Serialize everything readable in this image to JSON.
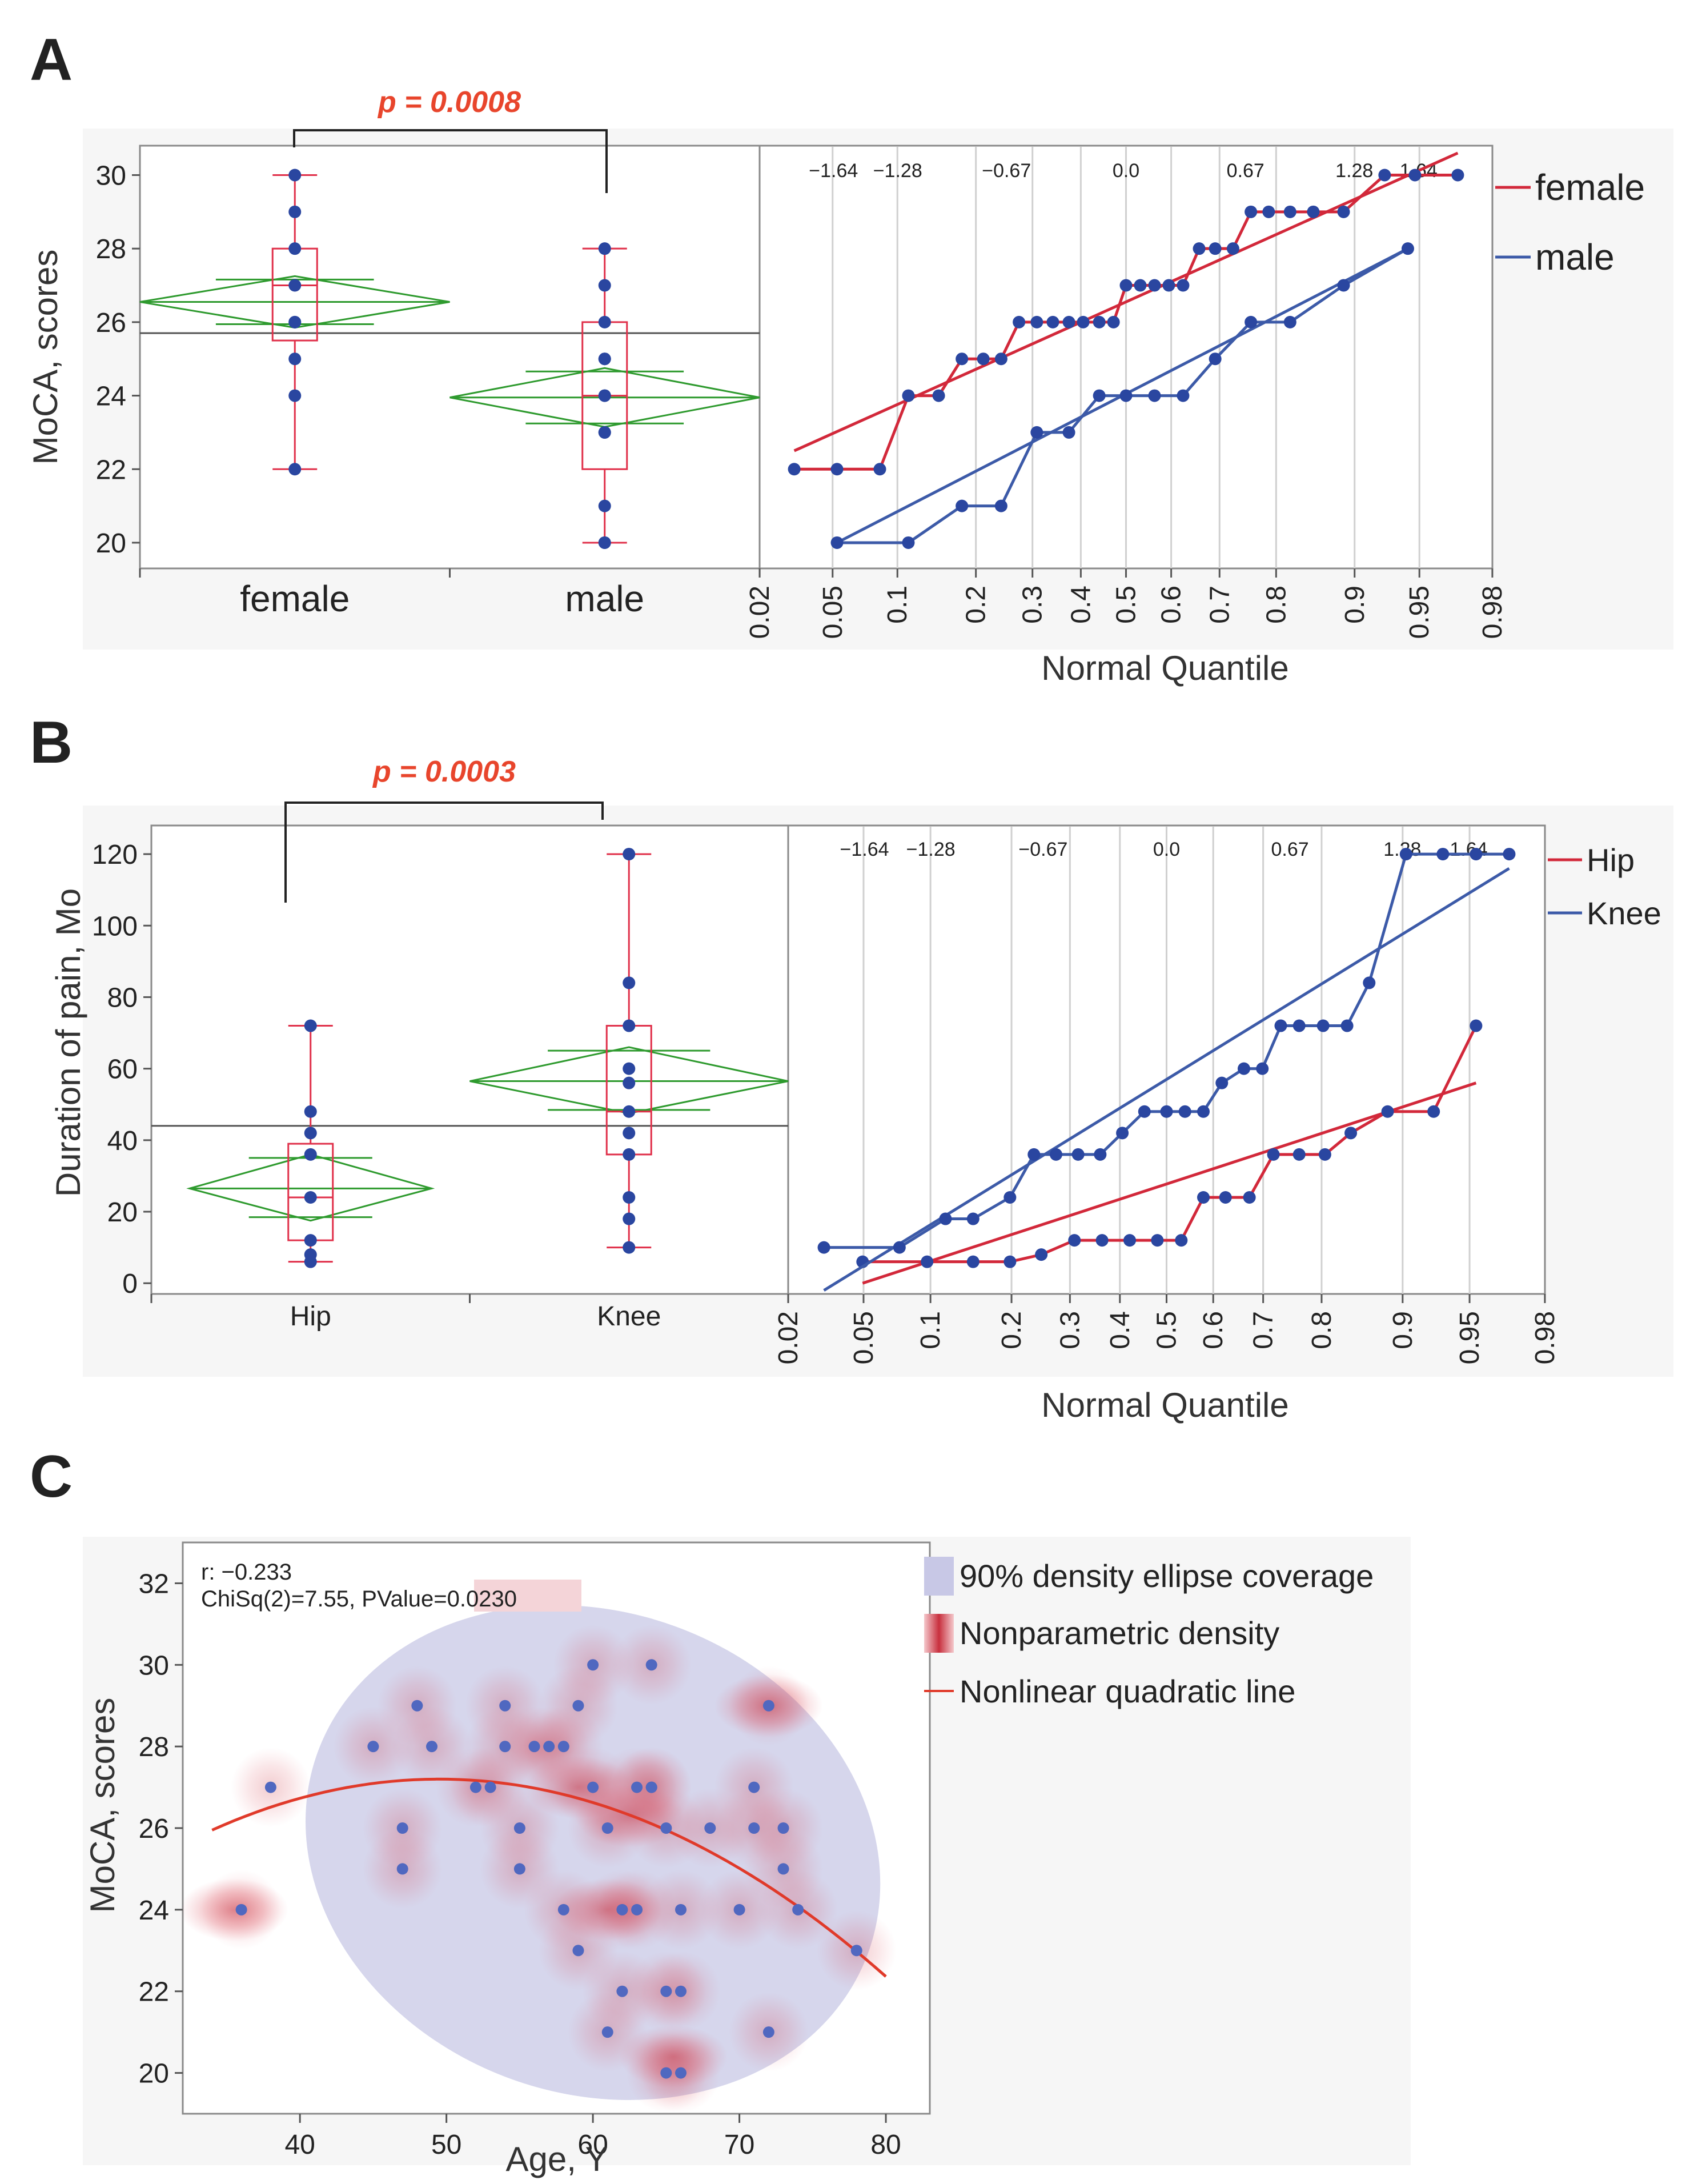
{
  "colors": {
    "female": "#d2283a",
    "male": "#3c5aa8",
    "box": "#e0304a",
    "diamond": "#2e9a2e",
    "point": "#2a46a0",
    "pvalue": "#e8452c",
    "ellipse": "#c8c8e6",
    "density": "#d8404e",
    "quad": "#e03a2a"
  },
  "panels": {
    "A": {
      "letter": "A",
      "pvalue": "p = 0.0008",
      "ylabel": "MoCA, scores",
      "xlabel": "Normal Quantile",
      "legend": [
        "female",
        "male"
      ],
      "group_labels": [
        "female",
        "male"
      ],
      "yticks": [
        "20",
        "22",
        "24",
        "26",
        "28",
        "30"
      ],
      "qticks": [
        "0.02",
        "0.05",
        "0.1",
        "0.2",
        "0.3",
        "0.4",
        "0.5",
        "0.6",
        "0.7",
        "0.8",
        "0.9",
        "0.95",
        "0.98"
      ],
      "zticks": [
        "-1.64",
        "-1.28",
        "-0.67",
        "0.0",
        "0.67",
        "1.28",
        "1.64"
      ]
    },
    "B": {
      "letter": "B",
      "pvalue": "p = 0.0003",
      "ylabel": "Duration of pain, Mo",
      "xlabel": "Normal Quantile",
      "legend": [
        "Hip",
        "Knee"
      ],
      "group_labels": [
        "Hip",
        "Knee"
      ],
      "yticks": [
        "0",
        "20",
        "40",
        "60",
        "80",
        "100",
        "120"
      ],
      "qticks": [
        "0.02",
        "0.05",
        "0.1",
        "0.2",
        "0.3",
        "0.4",
        "0.5",
        "0.6",
        "0.7",
        "0.8",
        "0.9",
        "0.95",
        "0.98"
      ],
      "zticks": [
        "-1.64",
        "-1.28",
        "-0.67",
        "0.0",
        "0.67",
        "1.28",
        "1.64"
      ]
    },
    "C": {
      "letter": "C",
      "ylabel": "MoCA, scores",
      "xlabel": "Age, Y",
      "r_text": "r: −0.233",
      "chisq_text": "ChiSq(2)=7.55, PValue=",
      "pvalue_text": "0.0230",
      "legend": [
        "90% density ellipse coverage",
        "Nonparametric density",
        "Nonlinear quadratic line"
      ],
      "xticks": [
        "40",
        "50",
        "60",
        "70",
        "80"
      ],
      "yticks": [
        "20",
        "22",
        "24",
        "26",
        "28",
        "30",
        "32"
      ]
    }
  },
  "chart_data": [
    {
      "panel": "A-box",
      "type": "box",
      "ylabel": "MoCA, scores",
      "ylim": [
        19.3,
        30.8
      ],
      "grand_mean": 25.7,
      "groups": [
        {
          "name": "female",
          "points": [
            22,
            24,
            25,
            26,
            26,
            27,
            28,
            29,
            30
          ],
          "q1": 25.5,
          "median": 27,
          "q3": 28,
          "whisker_low": 22,
          "whisker_high": 30,
          "mean": 26.55,
          "ci": [
            25.85,
            27.25
          ],
          "width_frac": 1.0
        },
        {
          "name": "male",
          "points": [
            20,
            20,
            21,
            23,
            23,
            24,
            24,
            25,
            25,
            26,
            27,
            28
          ],
          "q1": 22,
          "median": 24,
          "q3": 26,
          "whisker_low": 20,
          "whisker_high": 28,
          "mean": 23.95,
          "ci": [
            23.15,
            24.75
          ],
          "width_frac": 1.0
        }
      ],
      "annotation": "p = 0.0008"
    },
    {
      "panel": "A-quantile",
      "type": "line",
      "xlabel": "Normal Quantile",
      "ylim": [
        19.3,
        30.8
      ],
      "xlim_z": [
        -2.054,
        2.054
      ],
      "series": [
        {
          "name": "female",
          "x_z": [
            -1.86,
            -1.62,
            -1.38,
            -1.22,
            -1.05,
            -0.92,
            -0.8,
            -0.7,
            -0.6,
            -0.5,
            -0.41,
            -0.32,
            -0.24,
            -0.15,
            -0.07,
            0.0,
            0.08,
            0.16,
            0.24,
            0.32,
            0.41,
            0.5,
            0.6,
            0.7,
            0.8,
            0.92,
            1.05,
            1.22,
            1.45,
            1.62,
            1.86
          ],
          "y": [
            22,
            22,
            22,
            24,
            24,
            25,
            25,
            25,
            26,
            26,
            26,
            26,
            26,
            26,
            26,
            27,
            27,
            27,
            27,
            27,
            28,
            28,
            28,
            29,
            29,
            29,
            29,
            29,
            30,
            30,
            30
          ],
          "fit": [
            [
              -1.86,
              22.5
            ],
            [
              1.86,
              30.6
            ]
          ]
        },
        {
          "name": "male",
          "x_z": [
            -1.62,
            -1.22,
            -0.92,
            -0.7,
            -0.5,
            -0.32,
            -0.15,
            0.0,
            0.16,
            0.32,
            0.5,
            0.7,
            0.92,
            1.22,
            1.58
          ],
          "y": [
            20,
            20,
            21,
            21,
            23,
            23,
            24,
            24,
            24,
            24,
            25,
            26,
            26,
            27,
            28
          ],
          "fit": [
            [
              -1.62,
              20.0
            ],
            [
              1.58,
              28.0
            ]
          ]
        }
      ]
    },
    {
      "panel": "B-box",
      "type": "box",
      "ylabel": "Duration of pain, Mo",
      "ylim": [
        -3,
        128
      ],
      "grand_mean": 44,
      "groups": [
        {
          "name": "Hip",
          "points": [
            6,
            8,
            12,
            24,
            36,
            42,
            48,
            72
          ],
          "q1": 12,
          "median": 24,
          "q3": 39,
          "whisker_low": 6,
          "whisker_high": 72,
          "mean": 26.5,
          "ci": [
            17.5,
            36
          ],
          "width_frac": 0.76
        },
        {
          "name": "Knee",
          "points": [
            10,
            18,
            24,
            36,
            42,
            48,
            56,
            60,
            72,
            84,
            120
          ],
          "q1": 36,
          "median": 48,
          "q3": 72,
          "whisker_low": 10,
          "whisker_high": 120,
          "mean": 56.5,
          "ci": [
            47.5,
            66
          ],
          "width_frac": 1.0
        }
      ],
      "annotation": "p = 0.0003"
    },
    {
      "panel": "B-quantile",
      "type": "line",
      "xlabel": "Normal Quantile",
      "ylim": [
        -3,
        128
      ],
      "xlim_z": [
        -2.054,
        2.054
      ],
      "series": [
        {
          "name": "Hip",
          "x_z": [
            -1.65,
            -1.3,
            -1.05,
            -0.85,
            -0.68,
            -0.5,
            -0.35,
            -0.2,
            -0.05,
            0.08,
            0.2,
            0.32,
            0.45,
            0.58,
            0.72,
            0.86,
            1.0,
            1.2,
            1.45,
            1.68
          ],
          "y": [
            6,
            6,
            6,
            6,
            8,
            12,
            12,
            12,
            12,
            12,
            24,
            24,
            24,
            36,
            36,
            36,
            42,
            48,
            48,
            72
          ],
          "fit": [
            [
              -1.65,
              0
            ],
            [
              1.68,
              56
            ]
          ]
        },
        {
          "name": "Knee",
          "x_z": [
            -1.86,
            -1.45,
            -1.2,
            -1.05,
            -0.85,
            -0.72,
            -0.6,
            -0.48,
            -0.36,
            -0.24,
            -0.12,
            0.0,
            0.1,
            0.2,
            0.3,
            0.42,
            0.52,
            0.62,
            0.72,
            0.85,
            0.98,
            1.1,
            1.3,
            1.5,
            1.68,
            1.86
          ],
          "y": [
            10,
            10,
            18,
            18,
            24,
            36,
            36,
            36,
            36,
            42,
            48,
            48,
            48,
            48,
            56,
            60,
            60,
            72,
            72,
            72,
            72,
            84,
            120,
            120,
            120,
            120
          ],
          "fit": [
            [
              -1.86,
              -2
            ],
            [
              1.86,
              116
            ]
          ]
        }
      ]
    },
    {
      "panel": "C",
      "type": "scatter",
      "xlabel": "Age, Y",
      "ylabel": "MoCA, scores",
      "xlim": [
        32,
        83
      ],
      "ylim": [
        19,
        33
      ],
      "x": [
        36,
        38,
        45,
        47,
        47,
        48,
        49,
        53,
        54,
        55,
        55,
        56,
        58,
        58,
        59,
        59,
        60,
        60,
        61,
        61,
        62,
        62,
        63,
        63,
        64,
        64,
        65,
        65,
        65,
        66,
        66,
        66,
        68,
        70,
        71,
        71,
        72,
        72,
        73,
        73,
        74,
        78,
        54,
        57,
        52,
        64
      ],
      "y": [
        24,
        27,
        28,
        25,
        26,
        29,
        28,
        27,
        29,
        25,
        26,
        28,
        24,
        28,
        23,
        29,
        27,
        30,
        21,
        26,
        22,
        24,
        24,
        27,
        27,
        30,
        20,
        22,
        26,
        20,
        22,
        24,
        26,
        24,
        27,
        26,
        21,
        29,
        25,
        26,
        24,
        23,
        28,
        28,
        27,
        27
      ],
      "correlation_r": -0.233,
      "chisq": 7.55,
      "pvalue": 0.023,
      "ellipse": {
        "cx": 60,
        "cy": 25.4,
        "rx_years": 20,
        "ry_scores": 5.9,
        "rotation_deg": 20
      },
      "quadratic": {
        "a": -0.0052,
        "h": 49.5,
        "k": 27.2,
        "x_range": [
          34,
          80
        ]
      },
      "density_cores": [
        [
          59,
          27.0
        ],
        [
          62.5,
          26.3
        ],
        [
          61,
          24.0
        ],
        [
          72,
          29
        ],
        [
          35.5,
          24
        ],
        [
          65.5,
          20.4
        ]
      ]
    }
  ]
}
